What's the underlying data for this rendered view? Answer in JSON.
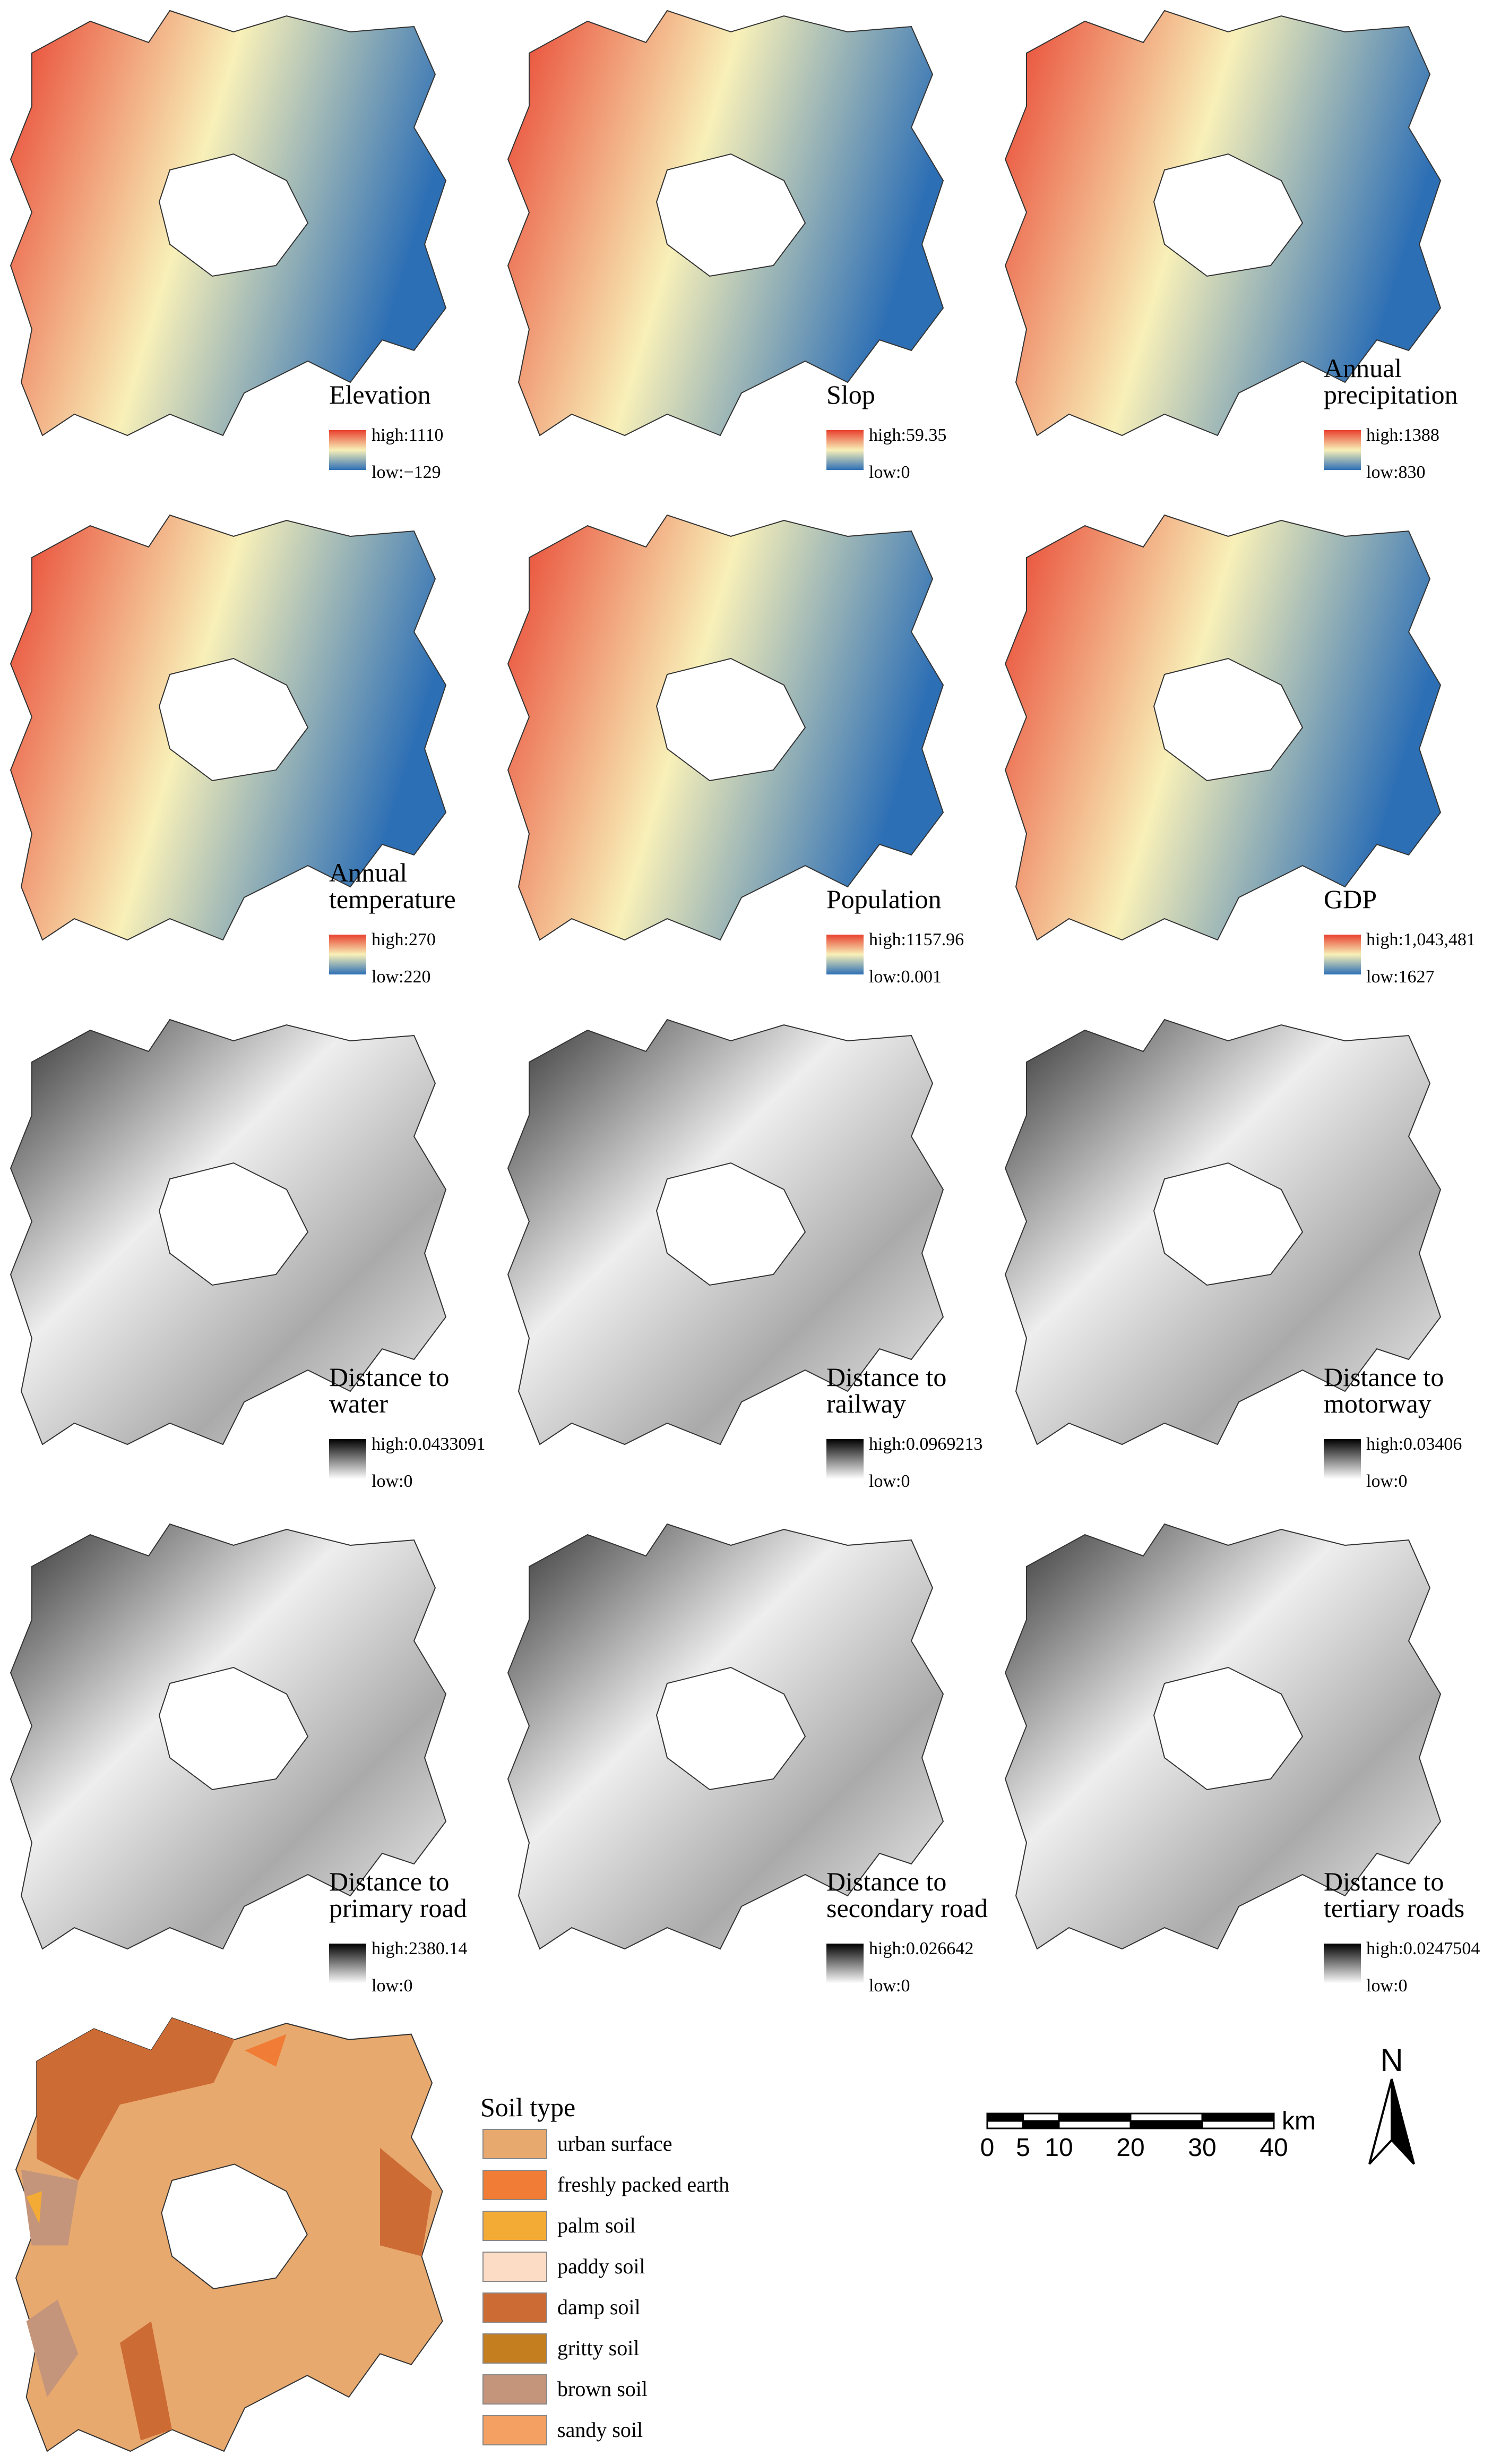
{
  "panels": [
    {
      "title": [
        "Elevation"
      ],
      "high": "high:1110",
      "low": "low:−129",
      "palette": "spectral"
    },
    {
      "title": [
        "Slop"
      ],
      "high": "high:59.35",
      "low": "low:0",
      "palette": "spectral"
    },
    {
      "title": [
        "Annual",
        "precipitation"
      ],
      "high": "high:1388",
      "low": "low:830",
      "palette": "spectral"
    },
    {
      "title": [
        "Annual",
        "temperature"
      ],
      "high": "high:270",
      "low": "low:220",
      "palette": "spectral"
    },
    {
      "title": [
        "Population"
      ],
      "high": "high:1157.96",
      "low": "low:0.001",
      "palette": "spectral"
    },
    {
      "title": [
        "GDP"
      ],
      "high": "high:1,043,481",
      "low": "low:1627",
      "palette": "spectral"
    },
    {
      "title": [
        "Distance to",
        "water"
      ],
      "high": "high:0.0433091",
      "low": "low:0",
      "palette": "gray"
    },
    {
      "title": [
        "Distance to",
        "railway"
      ],
      "high": "high:0.0969213",
      "low": "low:0",
      "palette": "gray"
    },
    {
      "title": [
        "Distance to",
        "motorway"
      ],
      "high": "high:0.03406",
      "low": "low:0",
      "palette": "gray"
    },
    {
      "title": [
        "Distance to",
        "primary road"
      ],
      "high": "high:2380.14",
      "low": "low:0",
      "palette": "gray"
    },
    {
      "title": [
        "Distance to",
        "secondary road"
      ],
      "high": "high:0.026642",
      "low": "low:0",
      "palette": "gray"
    },
    {
      "title": [
        "Distance to",
        "tertiary roads"
      ],
      "high": "high:0.0247504",
      "low": "low:0",
      "palette": "gray"
    }
  ],
  "soil": {
    "title": "Soil type",
    "items": [
      {
        "name": "urban surface",
        "color": "#e8a96e"
      },
      {
        "name": "freshly packed earth",
        "color": "#f07c35"
      },
      {
        "name": "palm soil",
        "color": "#f4ab35"
      },
      {
        "name": "paddy soil",
        "color": "#fddcc6"
      },
      {
        "name": "damp soil",
        "color": "#cd6b35"
      },
      {
        "name": "gritty soil",
        "color": "#c47d1f"
      },
      {
        "name": "brown soil",
        "color": "#c4957a"
      },
      {
        "name": "sandy soil",
        "color": "#f3a062"
      }
    ]
  },
  "scale_bar": {
    "ticks": [
      0,
      5,
      10,
      20,
      30,
      40
    ],
    "unit": "km"
  },
  "north": "N"
}
